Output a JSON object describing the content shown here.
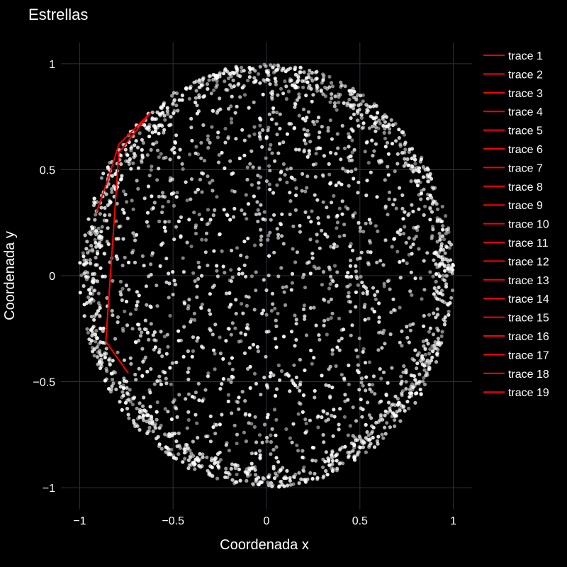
{
  "chart_data": {
    "type": "scatter",
    "title": "Estrellas",
    "xlabel": "Coordenada x",
    "ylabel": "Coordenada y",
    "xlim": [
      -1.1,
      1.1
    ],
    "ylim": [
      -1.1,
      1.1
    ],
    "x_ticks": [
      "−1",
      "−0.5",
      "0",
      "0.5",
      "1"
    ],
    "x_tick_values": [
      -1,
      -0.5,
      0,
      0.5,
      1
    ],
    "y_ticks": [
      "1",
      "0.5",
      "0",
      "−0.5",
      "−1"
    ],
    "y_tick_values": [
      1,
      0.5,
      0,
      -0.5,
      -1
    ],
    "grid": true,
    "legend_position": "top-right",
    "background_color": "#000000",
    "point_color": "#ffffff",
    "line_color": "#ff0000",
    "grid_color": "#2a3140",
    "points_series": {
      "shape": "unit disk, denser near rim",
      "count": 2500
    },
    "line_path": {
      "x": [
        -0.91,
        -0.85,
        -0.79,
        -0.72,
        -0.62,
        -0.79,
        -0.86,
        -0.74
      ],
      "y": [
        0.3,
        0.45,
        0.62,
        0.68,
        0.77,
        0.58,
        -0.31,
        -0.46
      ]
    },
    "series": [
      {
        "name": "trace 1"
      },
      {
        "name": "trace 2"
      },
      {
        "name": "trace 3"
      },
      {
        "name": "trace 4"
      },
      {
        "name": "trace 5"
      },
      {
        "name": "trace 6"
      },
      {
        "name": "trace 7"
      },
      {
        "name": "trace 8"
      },
      {
        "name": "trace 9"
      },
      {
        "name": "trace 10"
      },
      {
        "name": "trace 11"
      },
      {
        "name": "trace 12"
      },
      {
        "name": "trace 13"
      },
      {
        "name": "trace 14"
      },
      {
        "name": "trace 15"
      },
      {
        "name": "trace 16"
      },
      {
        "name": "trace 17"
      },
      {
        "name": "trace 18"
      },
      {
        "name": "trace 19"
      }
    ]
  }
}
